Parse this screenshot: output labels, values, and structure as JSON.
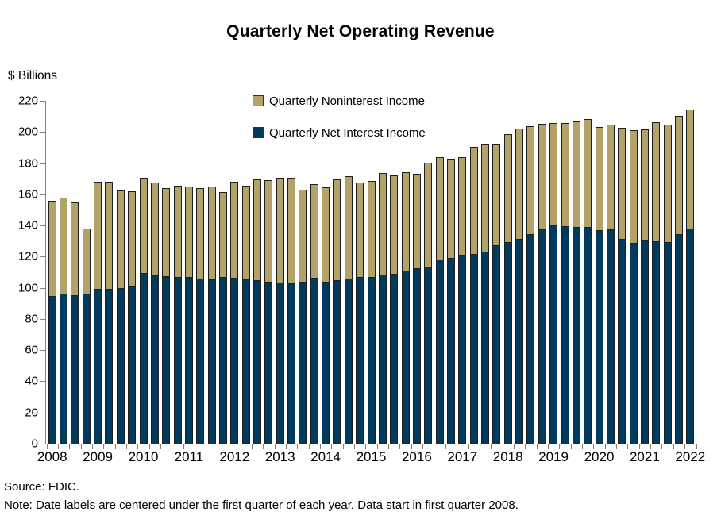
{
  "title": "Quarterly Net Operating Revenue",
  "y_axis_label": "$ Billions",
  "legend": [
    {
      "label": "Quarterly Noninterest Income",
      "color": "#B3A369"
    },
    {
      "label": "Quarterly Net Interest Income",
      "color": "#003A5D"
    }
  ],
  "footer": {
    "source": "Source: FDIC.",
    "note": "Note: Date labels are centered under the first quarter of each year. Data start in first quarter 2008."
  },
  "chart_data": {
    "type": "bar",
    "stacked": true,
    "title": "Quarterly Net Operating Revenue",
    "ylabel": "$ Billions",
    "xlabel": "",
    "ylim": [
      0,
      220
    ],
    "ytick_step": 20,
    "grid": false,
    "legend_position": "top-center-inside",
    "axis_color": "#808080",
    "units": "billions of dollars",
    "categories": [
      "2008 Q1",
      "2008 Q2",
      "2008 Q3",
      "2008 Q4",
      "2009 Q1",
      "2009 Q2",
      "2009 Q3",
      "2009 Q4",
      "2010 Q1",
      "2010 Q2",
      "2010 Q3",
      "2010 Q4",
      "2011 Q1",
      "2011 Q2",
      "2011 Q3",
      "2011 Q4",
      "2012 Q1",
      "2012 Q2",
      "2012 Q3",
      "2012 Q4",
      "2013 Q1",
      "2013 Q2",
      "2013 Q3",
      "2013 Q4",
      "2014 Q1",
      "2014 Q2",
      "2014 Q3",
      "2014 Q4",
      "2015 Q1",
      "2015 Q2",
      "2015 Q3",
      "2015 Q4",
      "2016 Q1",
      "2016 Q2",
      "2016 Q3",
      "2016 Q4",
      "2017 Q1",
      "2017 Q2",
      "2017 Q3",
      "2017 Q4",
      "2018 Q1",
      "2018 Q2",
      "2018 Q3",
      "2018 Q4",
      "2019 Q1",
      "2019 Q2",
      "2019 Q3",
      "2019 Q4",
      "2020 Q1",
      "2020 Q2",
      "2020 Q3",
      "2020 Q4",
      "2021 Q1",
      "2021 Q2",
      "2021 Q3",
      "2021 Q4",
      "2022 Q1"
    ],
    "x_year_labels": [
      "2008",
      "2009",
      "2010",
      "2011",
      "2012",
      "2013",
      "2014",
      "2015",
      "2016",
      "2017",
      "2018",
      "2019",
      "2020",
      "2021",
      "2022"
    ],
    "series": [
      {
        "name": "Quarterly Net Interest Income",
        "color": "#003A5D",
        "values": [
          94.5,
          96.5,
          95,
          96.5,
          99.5,
          99.5,
          100,
          101,
          109.5,
          108,
          107.5,
          107,
          107,
          106,
          105.5,
          107,
          106.5,
          105.5,
          105,
          104,
          103.5,
          103,
          104,
          106.5,
          104,
          105,
          106,
          107,
          107,
          108.5,
          109,
          111,
          112.5,
          113.5,
          118,
          119,
          121,
          121.5,
          123,
          127.5,
          129.5,
          131.5,
          134.5,
          137.5,
          140,
          139.5,
          139,
          139,
          137,
          137.5,
          131.5,
          129,
          130.5,
          130,
          129.5,
          134.5,
          138
        ]
      },
      {
        "name": "Quarterly Noninterest Income",
        "color": "#B3A369",
        "values": [
          61,
          61.5,
          59.5,
          42,
          69,
          68.5,
          62.5,
          61,
          61,
          59.5,
          56.5,
          58.5,
          58,
          58,
          59.5,
          54.5,
          61.5,
          60,
          64.5,
          65,
          67,
          67.5,
          59,
          60,
          60.5,
          64.5,
          65.5,
          60.5,
          61.5,
          65,
          63,
          63,
          60.5,
          66.5,
          65.5,
          63.5,
          62.5,
          68.5,
          68.5,
          64.5,
          69.5,
          71,
          69.5,
          67.5,
          65.5,
          66,
          67.5,
          69.5,
          66,
          67,
          71.5,
          72.5,
          71.5,
          76.5,
          75.5,
          76,
          76.5
        ]
      }
    ]
  }
}
